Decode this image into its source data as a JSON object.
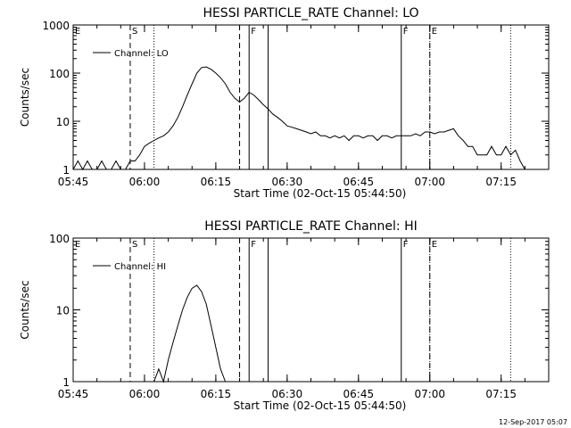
{
  "footer_date": "12-Sep-2017 05:07",
  "chart_data": [
    {
      "type": "line",
      "title": "HESSI PARTICLE_RATE Channel: LO",
      "xlabel": "Start Time (02-Oct-15 05:44:50)",
      "ylabel": "Counts/sec",
      "y_scale": "log",
      "ylim": [
        1,
        1000
      ],
      "y_ticks": [
        "1",
        "10",
        "100",
        "1000"
      ],
      "xlim": [
        "05:45",
        "07:25"
      ],
      "x_ticks": [
        "05:45",
        "06:00",
        "06:15",
        "06:30",
        "06:45",
        "07:00",
        "07:15"
      ],
      "legend": "top-left",
      "grid": false,
      "color": "#000000",
      "series": [
        {
          "name": "Channel: LO",
          "x": [
            "05:45",
            "05:46",
            "05:47",
            "05:48",
            "05:49",
            "05:50",
            "05:51",
            "05:52",
            "05:53",
            "05:54",
            "05:55",
            "05:56",
            "05:57",
            "05:58",
            "05:59",
            "06:00",
            "06:01",
            "06:02",
            "06:03",
            "06:04",
            "06:05",
            "06:06",
            "06:07",
            "06:08",
            "06:09",
            "06:10",
            "06:11",
            "06:12",
            "06:13",
            "06:14",
            "06:15",
            "06:16",
            "06:17",
            "06:18",
            "06:19",
            "06:20",
            "06:21",
            "06:22",
            "06:23",
            "06:24",
            "06:25",
            "06:26",
            "06:27",
            "06:28",
            "06:29",
            "06:30",
            "06:31",
            "06:32",
            "06:33",
            "06:34",
            "06:35",
            "06:36",
            "06:37",
            "06:38",
            "06:39",
            "06:40",
            "06:41",
            "06:42",
            "06:43",
            "06:44",
            "06:45",
            "06:46",
            "06:47",
            "06:48",
            "06:49",
            "06:50",
            "06:51",
            "06:52",
            "06:53",
            "06:54",
            "06:55",
            "06:56",
            "06:57",
            "06:58",
            "06:59",
            "07:00",
            "07:01",
            "07:02",
            "07:03",
            "07:04",
            "07:05",
            "07:06",
            "07:07",
            "07:08",
            "07:09",
            "07:10",
            "07:11",
            "07:12",
            "07:13",
            "07:14",
            "07:15",
            "07:16",
            "07:17",
            "07:18",
            "07:19",
            "07:20"
          ],
          "values": [
            1,
            1.5,
            1,
            1.5,
            1,
            1,
            1.5,
            1,
            1,
            1.5,
            1,
            1,
            1.5,
            1.5,
            2,
            3,
            3.5,
            4,
            4.5,
            5,
            6,
            8,
            12,
            20,
            35,
            60,
            100,
            130,
            135,
            120,
            100,
            80,
            60,
            40,
            30,
            25,
            30,
            40,
            35,
            28,
            22,
            18,
            14,
            12,
            10,
            8,
            7.5,
            7,
            6.5,
            6,
            5.5,
            6,
            5,
            5,
            4.5,
            5,
            4.5,
            5,
            4,
            5,
            5,
            4.5,
            5,
            5,
            4,
            5,
            5,
            4.5,
            5,
            5,
            5,
            5,
            5.5,
            5,
            6,
            6,
            5.5,
            6,
            6,
            6.5,
            7,
            5,
            4,
            3,
            3,
            2,
            2,
            2,
            3,
            2,
            2,
            3,
            2,
            2.5,
            1.5,
            1
          ]
        }
      ],
      "annotations": [
        {
          "x": "05:45",
          "label": "E",
          "style": "none"
        },
        {
          "x": "05:57",
          "label": "S",
          "style": "dashed"
        },
        {
          "x": "06:02",
          "label": "",
          "style": "dotted"
        },
        {
          "x": "06:20",
          "label": "",
          "style": "dashed"
        },
        {
          "x": "06:22",
          "label": "F",
          "style": "solid"
        },
        {
          "x": "06:26",
          "label": "",
          "style": "solid"
        },
        {
          "x": "06:54",
          "label": "F",
          "style": "solid"
        },
        {
          "x": "07:00",
          "label": "E",
          "style": "dashed"
        },
        {
          "x": "07:00",
          "label": "",
          "style": "dotted"
        },
        {
          "x": "07:17",
          "label": "",
          "style": "dotted"
        }
      ]
    },
    {
      "type": "line",
      "title": "HESSI PARTICLE_RATE Channel: HI",
      "xlabel": "Start Time (02-Oct-15 05:44:50)",
      "ylabel": "Counts/sec",
      "y_scale": "log",
      "ylim": [
        1,
        100
      ],
      "y_ticks": [
        "1",
        "10",
        "100"
      ],
      "xlim": [
        "05:45",
        "07:25"
      ],
      "x_ticks": [
        "05:45",
        "06:00",
        "06:15",
        "06:30",
        "06:45",
        "07:00",
        "07:15"
      ],
      "legend": "top-left",
      "grid": false,
      "color": "#000000",
      "series": [
        {
          "name": "Channel: HI",
          "x": [
            "06:02",
            "06:03",
            "06:04",
            "06:05",
            "06:06",
            "06:07",
            "06:08",
            "06:09",
            "06:10",
            "06:11",
            "06:12",
            "06:13",
            "06:14",
            "06:15",
            "06:16",
            "06:17"
          ],
          "values": [
            1,
            1.5,
            1,
            2,
            3.5,
            6,
            10,
            15,
            20,
            22,
            18,
            12,
            6,
            3,
            1.5,
            1
          ]
        }
      ],
      "annotations": [
        {
          "x": "05:45",
          "label": "E",
          "style": "none"
        },
        {
          "x": "05:57",
          "label": "S",
          "style": "dashed"
        },
        {
          "x": "06:02",
          "label": "",
          "style": "dotted"
        },
        {
          "x": "06:20",
          "label": "",
          "style": "dashed"
        },
        {
          "x": "06:22",
          "label": "F",
          "style": "solid"
        },
        {
          "x": "06:26",
          "label": "",
          "style": "solid"
        },
        {
          "x": "06:54",
          "label": "F",
          "style": "solid"
        },
        {
          "x": "07:00",
          "label": "E",
          "style": "dashed"
        },
        {
          "x": "07:00",
          "label": "",
          "style": "dotted"
        },
        {
          "x": "07:17",
          "label": "",
          "style": "dotted"
        }
      ]
    }
  ]
}
